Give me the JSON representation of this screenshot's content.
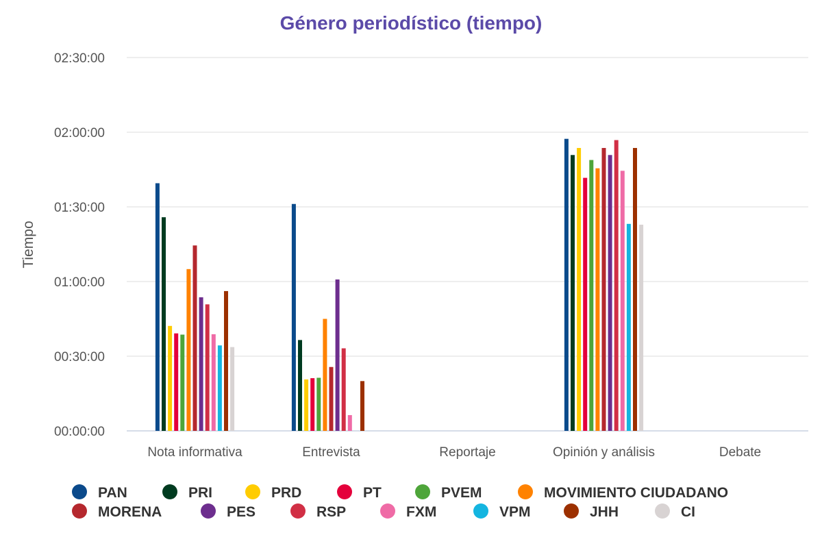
{
  "chart_data": {
    "type": "bar",
    "title": "Género periodístico (tiempo)",
    "title_color": "#5b4aa8",
    "ylabel": "Tiempo",
    "xlabel": "",
    "y_unit": "seconds",
    "ylim": [
      0,
      9000
    ],
    "y_ticks": [
      0,
      1800,
      3600,
      5400,
      7200,
      9000
    ],
    "y_tick_labels": [
      "00:00:00",
      "00:30:00",
      "01:00:00",
      "01:30:00",
      "02:00:00",
      "02:30:00"
    ],
    "grid": true,
    "legend_position": "bottom",
    "categories": [
      "Nota informativa",
      "Entrevista",
      "Reportaje",
      "Opinión y análisis",
      "Debate"
    ],
    "series": [
      {
        "name": "PAN",
        "color": "#0b4a8b",
        "values": [
          5970,
          5470,
          0,
          7040,
          0
        ]
      },
      {
        "name": "PRI",
        "color": "#003b20",
        "values": [
          5150,
          2190,
          0,
          6650,
          0
        ]
      },
      {
        "name": "PRD",
        "color": "#ffcc00",
        "values": [
          2530,
          1240,
          0,
          6820,
          0
        ]
      },
      {
        "name": "PT",
        "color": "#e4003b",
        "values": [
          2350,
          1270,
          0,
          6100,
          0
        ]
      },
      {
        "name": "PVEM",
        "color": "#4ea53a",
        "values": [
          2320,
          1280,
          0,
          6530,
          0
        ]
      },
      {
        "name": "MOVIMIENTO CIUDADANO",
        "color": "#ff8200",
        "values": [
          3900,
          2700,
          0,
          6330,
          0
        ]
      },
      {
        "name": "MORENA",
        "color": "#b5282e",
        "values": [
          4470,
          1540,
          0,
          6820,
          0
        ]
      },
      {
        "name": "PES",
        "color": "#6d2e8e",
        "values": [
          3220,
          3650,
          0,
          6650,
          0
        ]
      },
      {
        "name": "RSP",
        "color": "#d12f45",
        "values": [
          3050,
          1990,
          0,
          7010,
          0
        ]
      },
      {
        "name": "FXM",
        "color": "#ef6ba6",
        "values": [
          2330,
          380,
          0,
          6270,
          0
        ]
      },
      {
        "name": "VPM",
        "color": "#14b5e0",
        "values": [
          2060,
          0,
          0,
          4990,
          0
        ]
      },
      {
        "name": "JHH",
        "color": "#9c3000",
        "values": [
          3370,
          1200,
          0,
          6820,
          0
        ]
      },
      {
        "name": "CI",
        "color": "#d8d3d3",
        "values": [
          2020,
          0,
          0,
          4970,
          0
        ]
      }
    ]
  }
}
